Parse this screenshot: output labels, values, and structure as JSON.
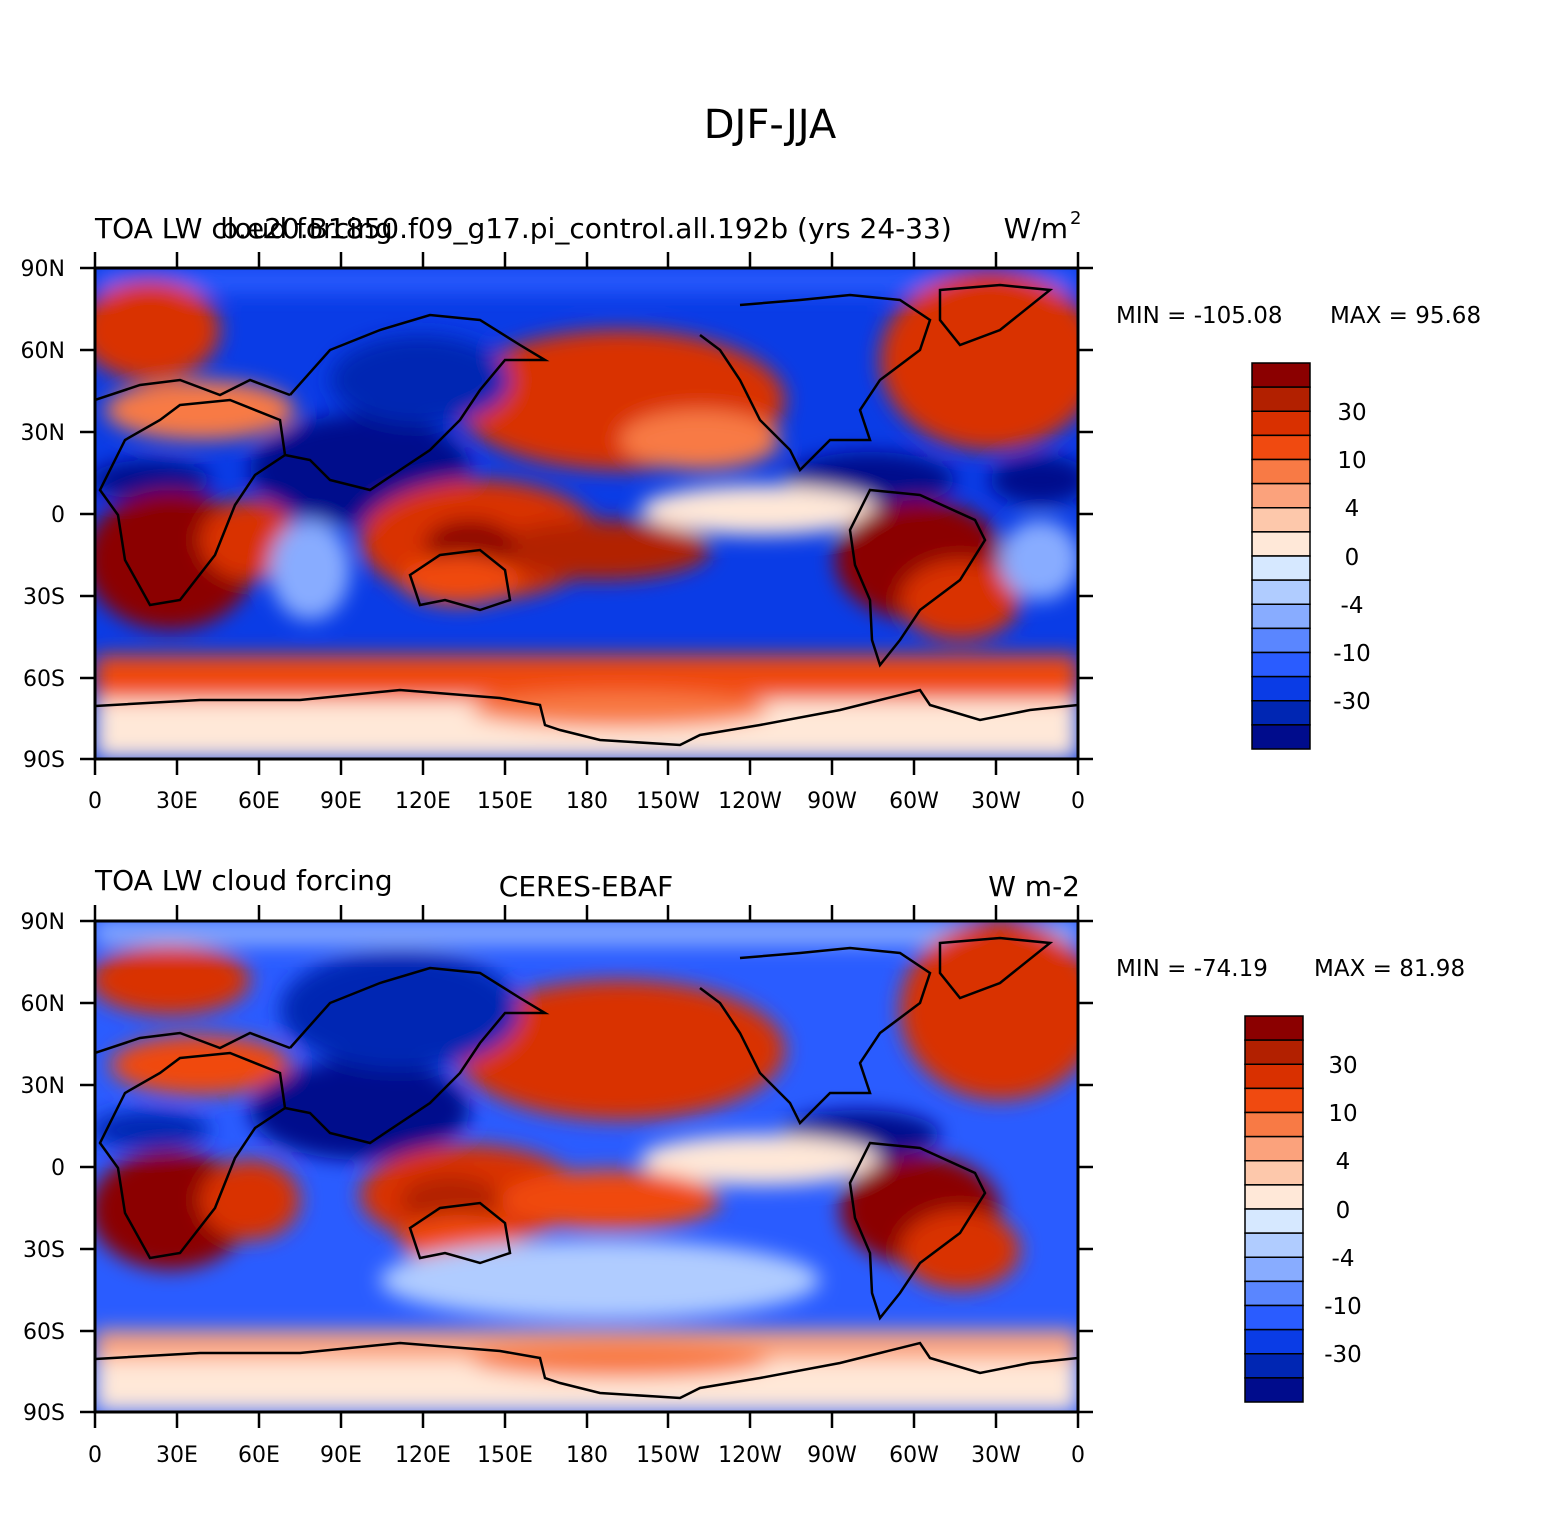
{
  "figure": {
    "title": "DJF-JJA"
  },
  "panels": [
    {
      "id": "model",
      "left_title": "TOA LW cloud forcing",
      "center_title": "b.e20.B1850.f09_g17.pi_control.all.192b (yrs 24-33)",
      "right_title": "W/m",
      "right_title_sup": "2",
      "min_label": "MIN = -105.08",
      "max_label": "MAX =  95.68"
    },
    {
      "id": "obs",
      "left_title": "TOA LW cloud forcing",
      "center_title": "CERES-EBAF",
      "right_title": "W m-2",
      "right_title_sup": "",
      "min_label": "MIN = -74.19",
      "max_label": "MAX =  81.98"
    }
  ],
  "axes": {
    "lat_labels": [
      "90N",
      "60N",
      "30N",
      "0",
      "30S",
      "60S",
      "90S"
    ],
    "lon_labels": [
      "0",
      "30E",
      "60E",
      "90E",
      "120E",
      "150E",
      "180",
      "150W",
      "120W",
      "90W",
      "60W",
      "30W",
      "0"
    ]
  },
  "colorbar": {
    "labels": [
      "30",
      "10",
      "4",
      "0",
      "-4",
      "-10",
      "-30"
    ],
    "colors": [
      "#8b0000",
      "#b22000",
      "#d93000",
      "#f04a10",
      "#f87a45",
      "#fba27c",
      "#fdc8ab",
      "#ffe8d8",
      "#d6e8ff",
      "#b0ccff",
      "#88acff",
      "#5a86ff",
      "#2a5cff",
      "#0a3ce6",
      "#0026b3",
      "#000c8c"
    ]
  }
}
